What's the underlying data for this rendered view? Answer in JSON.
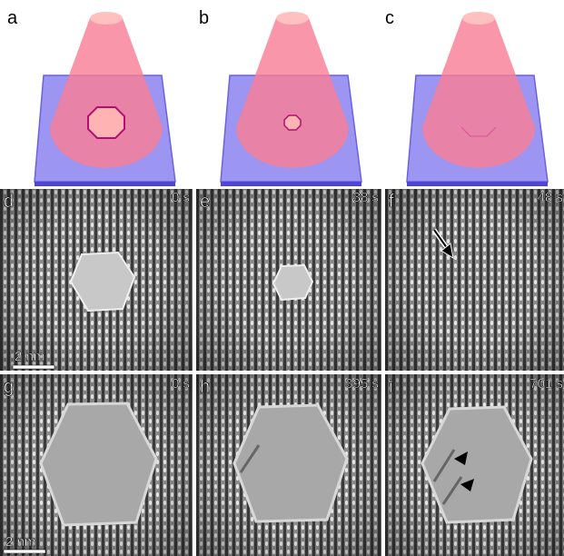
{
  "schematics": [
    {
      "label": "a"
    },
    {
      "label": "b"
    },
    {
      "label": "c"
    }
  ],
  "micrographs": [
    {
      "label": "d",
      "time": "0 s",
      "scale_bar": "2 nm"
    },
    {
      "label": "e",
      "time": "38 s"
    },
    {
      "label": "f",
      "time": "48 s"
    },
    {
      "label": "g",
      "time": "0 s",
      "scale_bar": "2 nm"
    },
    {
      "label": "h",
      "time": "395 s"
    },
    {
      "label": "i",
      "time": "701 s"
    }
  ]
}
